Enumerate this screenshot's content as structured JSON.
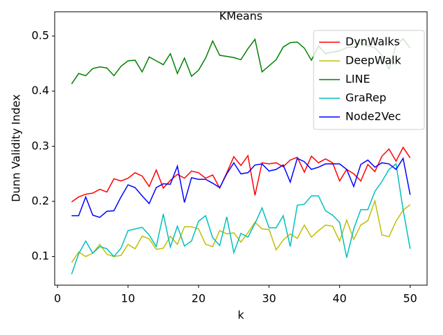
{
  "chart_data": {
    "type": "line",
    "title": "KMeans",
    "x_label": "k",
    "y_label": "Dunn Validity Index",
    "x": [
      2,
      3,
      4,
      5,
      6,
      7,
      8,
      9,
      10,
      11,
      12,
      13,
      14,
      15,
      16,
      17,
      18,
      19,
      20,
      21,
      22,
      23,
      24,
      25,
      26,
      27,
      28,
      29,
      30,
      31,
      32,
      33,
      34,
      35,
      36,
      37,
      38,
      39,
      40,
      41,
      42,
      43,
      44,
      45,
      46,
      47,
      48,
      49,
      50
    ],
    "series": [
      {
        "name": "DynWalks",
        "color": "#ff0000",
        "values": [
          0.199,
          0.208,
          0.213,
          0.215,
          0.222,
          0.217,
          0.241,
          0.237,
          0.242,
          0.252,
          0.246,
          0.227,
          0.257,
          0.224,
          0.238,
          0.249,
          0.242,
          0.255,
          0.252,
          0.242,
          0.248,
          0.224,
          0.252,
          0.281,
          0.265,
          0.283,
          0.211,
          0.27,
          0.268,
          0.27,
          0.263,
          0.275,
          0.28,
          0.253,
          0.282,
          0.27,
          0.277,
          0.27,
          0.237,
          0.258,
          0.25,
          0.237,
          0.267,
          0.254,
          0.282,
          0.295,
          0.273,
          0.298,
          0.279
        ]
      },
      {
        "name": "DeepWalk",
        "color": "#bfbf00",
        "values": [
          0.089,
          0.108,
          0.1,
          0.106,
          0.122,
          0.104,
          0.1,
          0.102,
          0.122,
          0.114,
          0.137,
          0.132,
          0.113,
          0.115,
          0.137,
          0.122,
          0.154,
          0.154,
          0.15,
          0.122,
          0.118,
          0.147,
          0.141,
          0.143,
          0.126,
          0.143,
          0.162,
          0.15,
          0.149,
          0.112,
          0.13,
          0.141,
          0.133,
          0.157,
          0.135,
          0.147,
          0.157,
          0.155,
          0.128,
          0.166,
          0.131,
          0.157,
          0.165,
          0.201,
          0.139,
          0.136,
          0.164,
          0.184,
          0.194
        ]
      },
      {
        "name": "LINE",
        "color": "#008000",
        "values": [
          0.413,
          0.432,
          0.428,
          0.441,
          0.444,
          0.442,
          0.428,
          0.445,
          0.455,
          0.456,
          0.435,
          0.462,
          0.455,
          0.448,
          0.468,
          0.432,
          0.46,
          0.427,
          0.438,
          0.46,
          0.491,
          0.465,
          0.463,
          0.461,
          0.457,
          0.477,
          0.494,
          0.435,
          0.446,
          0.457,
          0.48,
          0.488,
          0.489,
          0.478,
          0.456,
          0.482,
          0.468,
          0.471,
          0.473,
          0.479,
          0.48,
          0.488,
          0.482,
          0.479,
          0.465,
          0.44,
          0.483,
          0.495,
          0.478
        ]
      },
      {
        "name": "GraRep",
        "color": "#00bfbf",
        "values": [
          0.068,
          0.105,
          0.128,
          0.106,
          0.118,
          0.114,
          0.1,
          0.115,
          0.147,
          0.15,
          0.153,
          0.139,
          0.118,
          0.177,
          0.117,
          0.155,
          0.119,
          0.128,
          0.164,
          0.174,
          0.134,
          0.12,
          0.172,
          0.107,
          0.142,
          0.135,
          0.16,
          0.188,
          0.152,
          0.152,
          0.174,
          0.118,
          0.193,
          0.195,
          0.21,
          0.21,
          0.183,
          0.175,
          0.162,
          0.098,
          0.15,
          0.185,
          0.185,
          0.218,
          0.236,
          0.258,
          0.268,
          0.185,
          0.114
        ]
      },
      {
        "name": "Node2Vec",
        "color": "#0000ff",
        "values": [
          0.174,
          0.174,
          0.208,
          0.175,
          0.171,
          0.182,
          0.183,
          0.208,
          0.23,
          0.225,
          0.21,
          0.196,
          0.225,
          0.232,
          0.231,
          0.264,
          0.198,
          0.243,
          0.24,
          0.24,
          0.233,
          0.225,
          0.25,
          0.27,
          0.25,
          0.252,
          0.266,
          0.268,
          0.255,
          0.258,
          0.266,
          0.235,
          0.278,
          0.272,
          0.258,
          0.262,
          0.268,
          0.268,
          0.268,
          0.258,
          0.227,
          0.267,
          0.275,
          0.262,
          0.27,
          0.268,
          0.258,
          0.278,
          0.212
        ]
      }
    ],
    "xlim": [
      -0.4,
      52.4
    ],
    "ylim": [
      0.048,
      0.544
    ],
    "xticks": [
      0,
      10,
      20,
      30,
      40,
      50
    ],
    "yticks": [
      0.1,
      0.2,
      0.3,
      0.4,
      0.5
    ],
    "legend": "upper right"
  }
}
